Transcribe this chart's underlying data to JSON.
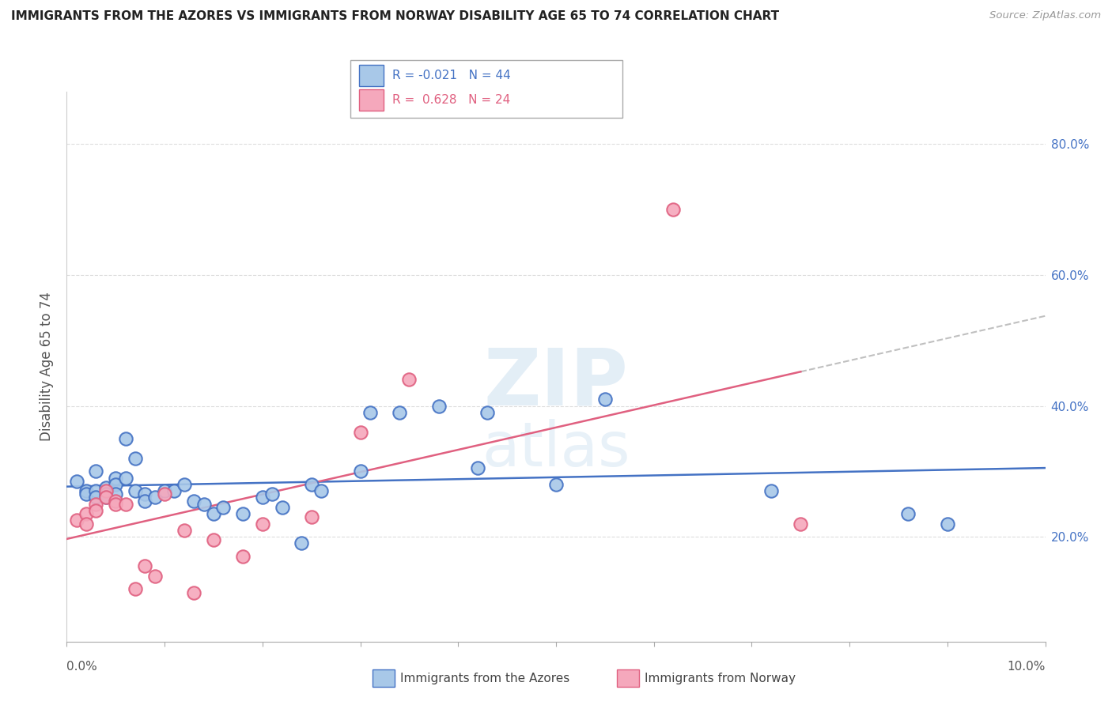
{
  "title": "IMMIGRANTS FROM THE AZORES VS IMMIGRANTS FROM NORWAY DISABILITY AGE 65 TO 74 CORRELATION CHART",
  "source": "Source: ZipAtlas.com",
  "ylabel": "Disability Age 65 to 74",
  "legend1_label": "Immigrants from the Azores",
  "legend2_label": "Immigrants from Norway",
  "R1": -0.021,
  "N1": 44,
  "R2": 0.628,
  "N2": 24,
  "color_azores": "#a8c8e8",
  "color_norway": "#f5a8bc",
  "line_color_azores": "#4472c4",
  "line_color_norway": "#e06080",
  "trendline_dash_color": "#c0c0c0",
  "azores_x": [
    0.001,
    0.002,
    0.002,
    0.003,
    0.003,
    0.003,
    0.004,
    0.004,
    0.004,
    0.005,
    0.005,
    0.005,
    0.006,
    0.006,
    0.007,
    0.007,
    0.008,
    0.008,
    0.009,
    0.01,
    0.011,
    0.012,
    0.013,
    0.014,
    0.015,
    0.016,
    0.018,
    0.02,
    0.021,
    0.022,
    0.024,
    0.025,
    0.026,
    0.03,
    0.031,
    0.034,
    0.038,
    0.042,
    0.043,
    0.05,
    0.055,
    0.072,
    0.086,
    0.09
  ],
  "azores_y": [
    0.285,
    0.27,
    0.265,
    0.3,
    0.27,
    0.26,
    0.275,
    0.265,
    0.26,
    0.29,
    0.28,
    0.265,
    0.35,
    0.29,
    0.32,
    0.27,
    0.265,
    0.255,
    0.26,
    0.27,
    0.27,
    0.28,
    0.255,
    0.25,
    0.235,
    0.245,
    0.235,
    0.26,
    0.265,
    0.245,
    0.19,
    0.28,
    0.27,
    0.3,
    0.39,
    0.39,
    0.4,
    0.305,
    0.39,
    0.28,
    0.41,
    0.27,
    0.235,
    0.22
  ],
  "norway_x": [
    0.001,
    0.002,
    0.002,
    0.003,
    0.003,
    0.004,
    0.004,
    0.005,
    0.005,
    0.006,
    0.007,
    0.008,
    0.009,
    0.01,
    0.012,
    0.013,
    0.015,
    0.018,
    0.02,
    0.025,
    0.03,
    0.035,
    0.062,
    0.075
  ],
  "norway_y": [
    0.225,
    0.235,
    0.22,
    0.25,
    0.24,
    0.27,
    0.26,
    0.255,
    0.25,
    0.25,
    0.12,
    0.155,
    0.14,
    0.265,
    0.21,
    0.115,
    0.195,
    0.17,
    0.22,
    0.23,
    0.36,
    0.44,
    0.7,
    0.22
  ],
  "xmin": 0.0,
  "xmax": 0.1,
  "ymin": 0.04,
  "ymax": 0.88,
  "yticks": [
    0.2,
    0.4,
    0.6,
    0.8
  ],
  "xtick_positions": [
    0.0,
    0.01,
    0.02,
    0.03,
    0.04,
    0.05,
    0.06,
    0.07,
    0.08,
    0.09,
    0.1
  ]
}
